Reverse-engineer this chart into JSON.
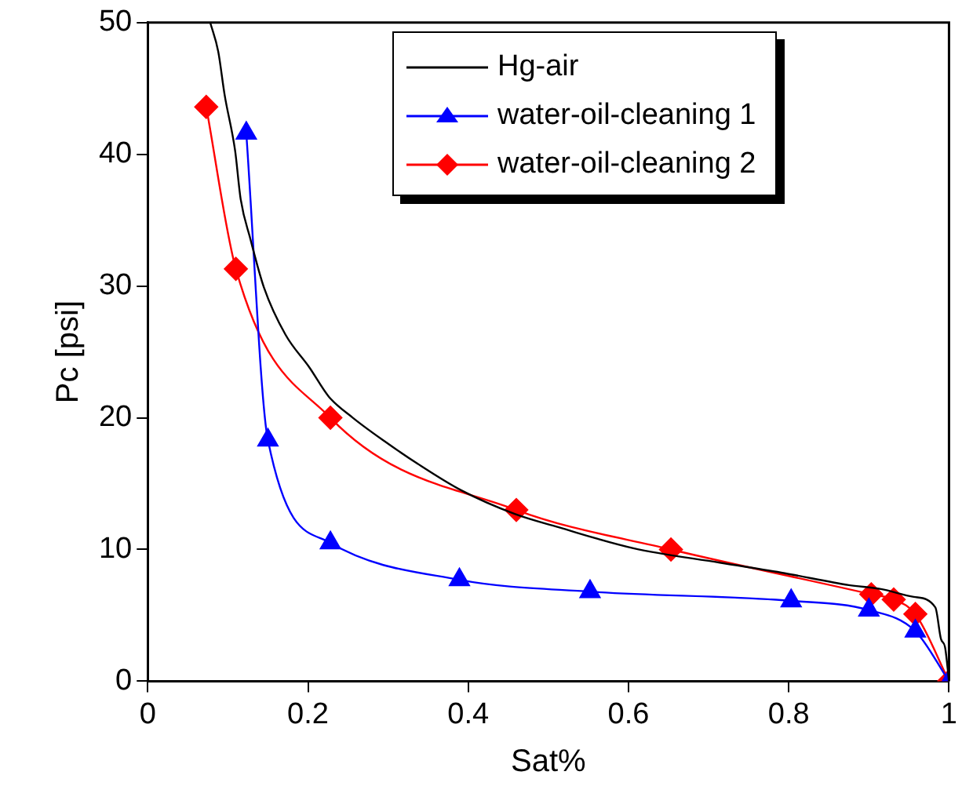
{
  "chart_data": {
    "type": "line",
    "xlabel": "Sat%",
    "ylabel": "Pc [psi]",
    "xlim": [
      0,
      1
    ],
    "ylim": [
      0,
      50
    ],
    "xticks": [
      0,
      0.2,
      0.4,
      0.6,
      0.8,
      1
    ],
    "yticks": [
      0,
      10,
      20,
      30,
      40,
      50
    ],
    "grid": false,
    "legend": "top right",
    "line_style": "solid",
    "series": [
      {
        "name": "Hg-air",
        "color": "#000000",
        "marker": "none",
        "x": [
          0.078,
          0.088,
          0.096,
          0.109,
          0.116,
          0.128,
          0.145,
          0.172,
          0.202,
          0.226,
          0.256,
          0.296,
          0.337,
          0.391,
          0.458,
          0.512,
          0.606,
          0.714,
          0.795,
          0.875,
          0.915,
          0.956,
          0.983,
          0.99,
          0.995,
          1
        ],
        "values": [
          50,
          47.8,
          44.5,
          40.3,
          36.6,
          33.6,
          29.9,
          26.3,
          23.8,
          21.6,
          20,
          18.2,
          16.5,
          14.5,
          12.7,
          11.7,
          10.1,
          9,
          8.2,
          7.3,
          7,
          6.4,
          5.6,
          3.2,
          2.6,
          0
        ]
      },
      {
        "name": "water-oil-cleaning 1",
        "color": "#0000ff",
        "marker": "triangle",
        "x": [
          0.123,
          0.15,
          0.228,
          0.389,
          0.552,
          0.803,
          0.9,
          0.958,
          1
        ],
        "values": [
          41.6,
          18.3,
          10.5,
          7.7,
          6.8,
          6.1,
          5.4,
          3.8,
          0
        ]
      },
      {
        "name": "water-oil-cleaning 2",
        "color": "#ff0000",
        "marker": "diamond",
        "x": [
          0.073,
          0.11,
          0.228,
          0.46,
          0.653,
          0.903,
          0.931,
          0.958,
          1
        ],
        "values": [
          43.6,
          31.3,
          20,
          13,
          10,
          6.6,
          6.2,
          5.1,
          0
        ]
      }
    ]
  }
}
